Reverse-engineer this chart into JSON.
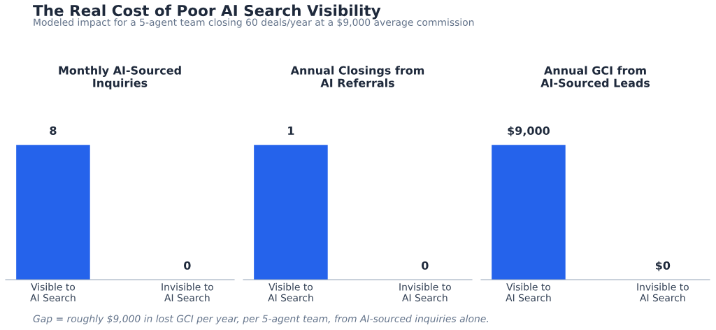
{
  "chart_data": [
    {
      "type": "bar",
      "title": "Monthly AI-Sourced\nInquiries",
      "categories": [
        "Visible to\nAI Search",
        "Invisible to\nAI Search"
      ],
      "values": [
        8,
        0
      ],
      "color": "#2563eb",
      "data_labels": true,
      "grid": false,
      "legend": false
    },
    {
      "type": "bar",
      "title": "Annual Closings from\nAI Referrals",
      "categories": [
        "Visible to\nAI Search",
        "Invisible to\nAI Search"
      ],
      "values": [
        1,
        0
      ],
      "color": "#2563eb",
      "data_labels": true,
      "grid": false,
      "legend": false
    },
    {
      "type": "bar",
      "title": "Annual GCI from\nAI-Sourced Leads",
      "categories": [
        "Visible to\nAI Search",
        "Invisible to\nAI Search"
      ],
      "values": [
        9000,
        0
      ],
      "value_labels": [
        "$9,000",
        "$0"
      ],
      "color": "#2563eb",
      "grid": false,
      "legend": false,
      "annotations": [
        "The Real Cost of Poor AI Search Visibility",
        "Modeled impact for a 5-agent team closing 60 deals/year at a $9,000 average commission",
        "Gap = roughly $9,000 in lost GCI per year, per 5-agent team, from AI-sourced inquiries alone."
      ]
    }
  ]
}
